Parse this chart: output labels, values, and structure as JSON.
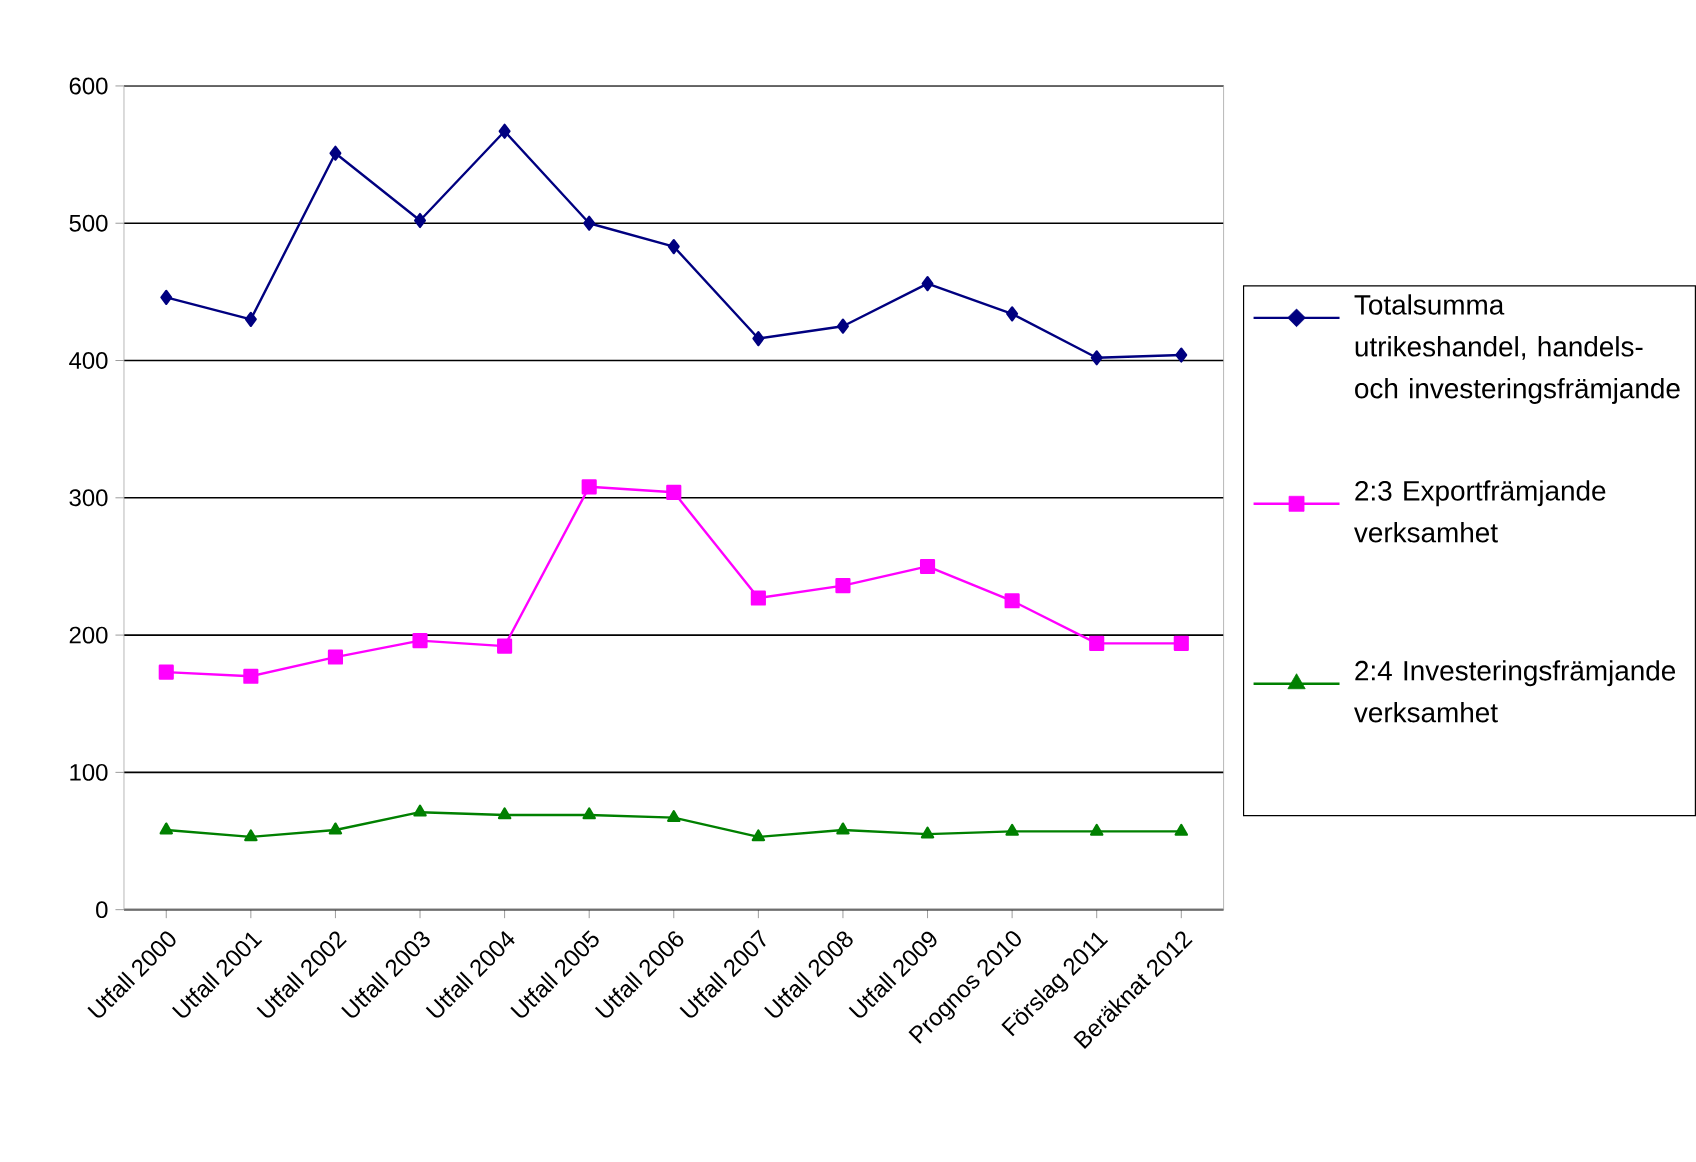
{
  "chart_data": {
    "type": "line",
    "categories": [
      "Utfall 2000",
      "Utfall 2001",
      "Utfall 2002",
      "Utfall 2003",
      "Utfall 2004",
      "Utfall 2005",
      "Utfall 2006",
      "Utfall 2007",
      "Utfall 2008",
      "Utfall 2009",
      "Prognos 2010",
      "Förslag 2011",
      "Beräknat 2012"
    ],
    "series": [
      {
        "name": "Totalsumma utrikeshandel, handels- och investeringsfrämjande",
        "color": "#000080",
        "marker": "diamond",
        "values": [
          446,
          430,
          551,
          502,
          567,
          500,
          483,
          416,
          425,
          456,
          434,
          402,
          404
        ]
      },
      {
        "name": "2:3 Exportfrämjande verksamhet",
        "color": "#ff00ff",
        "marker": "square",
        "values": [
          173,
          170,
          184,
          196,
          192,
          308,
          304,
          227,
          236,
          250,
          225,
          194,
          194
        ]
      },
      {
        "name": "2:4 Investeringsfrämjande verksamhet",
        "color": "#008000",
        "marker": "triangle",
        "values": [
          58,
          53,
          58,
          71,
          69,
          69,
          67,
          53,
          58,
          55,
          57,
          57,
          57
        ]
      }
    ],
    "ylim": [
      0,
      600
    ],
    "yticks": [
      0,
      100,
      200,
      300,
      400,
      500,
      600
    ],
    "grid": "y",
    "legend": "right",
    "line_style": "solid"
  }
}
